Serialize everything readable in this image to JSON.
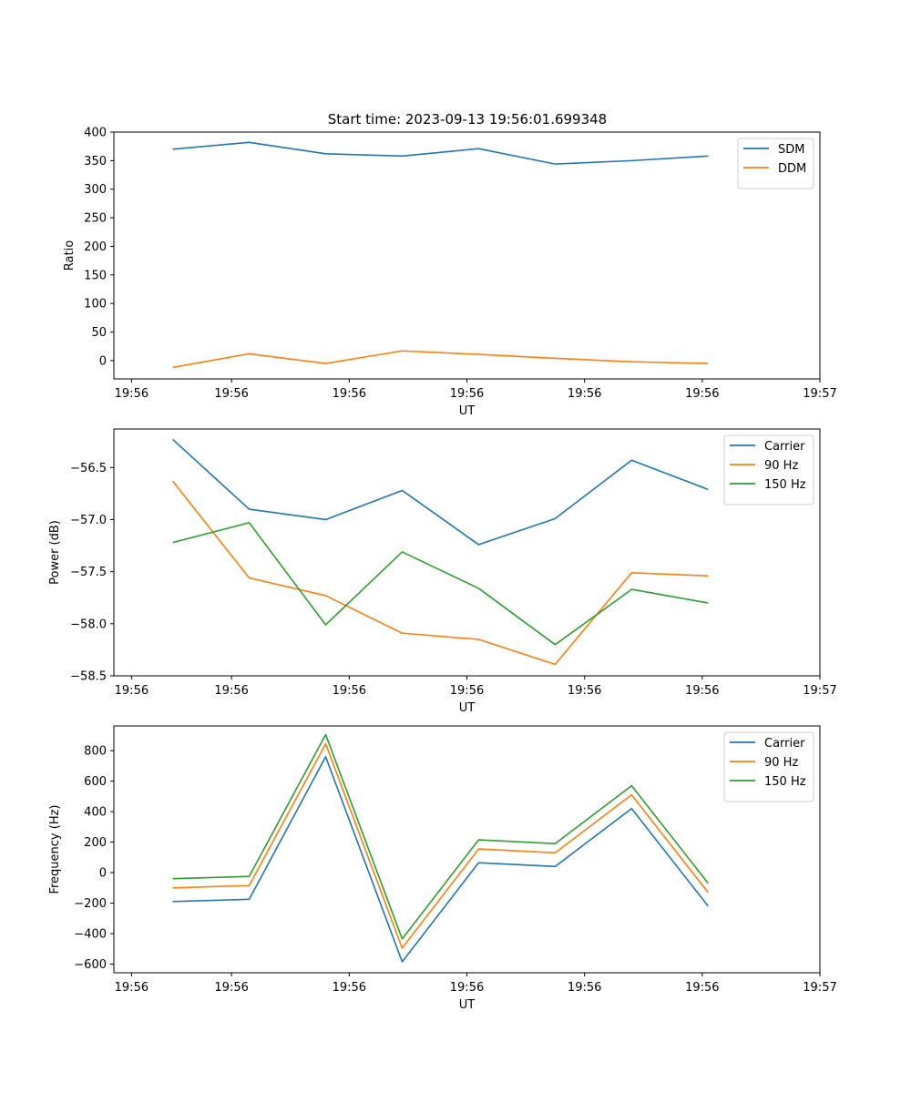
{
  "figure_title": "Start time: 2023-09-13 19:56:01.699348",
  "colors": {
    "blue": "#1f77b4",
    "orange": "#ff7f0e",
    "green": "#2ca02c"
  },
  "chart_data": [
    {
      "type": "line",
      "title": "Start time: 2023-09-13 19:56:01.699348",
      "xlabel": "UT",
      "ylabel": "Ratio",
      "xtick_labels": [
        "19:56",
        "19:56",
        "19:56",
        "19:56",
        "19:56",
        "19:56",
        "19:56"
      ],
      "last_xtick_label": "19:57",
      "xlim": [
        0,
        6
      ],
      "x": [
        0.5,
        1.15,
        1.8,
        2.45,
        3.1,
        3.75,
        4.4,
        5.05
      ],
      "ylim": [
        -32,
        400
      ],
      "yticks": [
        0,
        50,
        100,
        150,
        200,
        250,
        300,
        350,
        400
      ],
      "legend": "top-right",
      "series": [
        {
          "name": "SDM",
          "color": "#1f77b4",
          "values": [
            370,
            382,
            362,
            358,
            371,
            344,
            350,
            358
          ]
        },
        {
          "name": "DDM",
          "color": "#ff7f0e",
          "values": [
            -12,
            12,
            -5,
            17,
            11,
            4,
            -2,
            -5
          ]
        }
      ]
    },
    {
      "type": "line",
      "title": "",
      "xlabel": "UT",
      "ylabel": "Power (dB)",
      "xtick_labels": [
        "19:56",
        "19:56",
        "19:56",
        "19:56",
        "19:56",
        "19:56",
        "19:56"
      ],
      "last_xtick_label": "19:57",
      "xlim": [
        0,
        6
      ],
      "x": [
        0.5,
        1.15,
        1.8,
        2.45,
        3.1,
        3.75,
        4.4,
        5.05
      ],
      "ylim": [
        -58.5,
        -56.13
      ],
      "yticks": [
        -58.5,
        -58.0,
        -57.5,
        -57.0,
        -56.5
      ],
      "ytick_labels": [
        "−58.5",
        "−58.0",
        "−57.5",
        "−57.0",
        "−56.5"
      ],
      "legend": "top-right",
      "series": [
        {
          "name": "Carrier",
          "color": "#1f77b4",
          "values": [
            -56.23,
            -56.9,
            -57.0,
            -56.72,
            -57.24,
            -56.99,
            -56.43,
            -56.71
          ]
        },
        {
          "name": "90 Hz",
          "color": "#ff7f0e",
          "values": [
            -56.63,
            -57.56,
            -57.73,
            -58.09,
            -58.15,
            -58.39,
            -57.51,
            -57.54
          ]
        },
        {
          "name": "150 Hz",
          "color": "#2ca02c",
          "values": [
            -57.22,
            -57.03,
            -58.01,
            -57.31,
            -57.66,
            -58.2,
            -57.67,
            -57.8
          ]
        }
      ]
    },
    {
      "type": "line",
      "title": "",
      "xlabel": "UT",
      "ylabel": "Frequency (Hz)",
      "xtick_labels": [
        "19:56",
        "19:56",
        "19:56",
        "19:56",
        "19:56",
        "19:56",
        "19:56"
      ],
      "last_xtick_label": "19:57",
      "xlim": [
        0,
        6
      ],
      "x": [
        0.5,
        1.15,
        1.8,
        2.45,
        3.1,
        3.75,
        4.4,
        5.05
      ],
      "ylim": [
        -657,
        962
      ],
      "yticks": [
        -600,
        -400,
        -200,
        0,
        200,
        400,
        600,
        800
      ],
      "ytick_labels": [
        "−600",
        "−400",
        "−200",
        "0",
        "200",
        "400",
        "600",
        "800"
      ],
      "legend": "top-right",
      "series": [
        {
          "name": "Carrier",
          "color": "#1f77b4",
          "values": [
            -190,
            -175,
            760,
            -585,
            65,
            40,
            420,
            -220
          ]
        },
        {
          "name": "90 Hz",
          "color": "#ff7f0e",
          "values": [
            -100,
            -85,
            845,
            -495,
            155,
            130,
            510,
            -130
          ]
        },
        {
          "name": "150 Hz",
          "color": "#2ca02c",
          "values": [
            -40,
            -25,
            905,
            -435,
            215,
            190,
            570,
            -70
          ]
        }
      ]
    }
  ]
}
